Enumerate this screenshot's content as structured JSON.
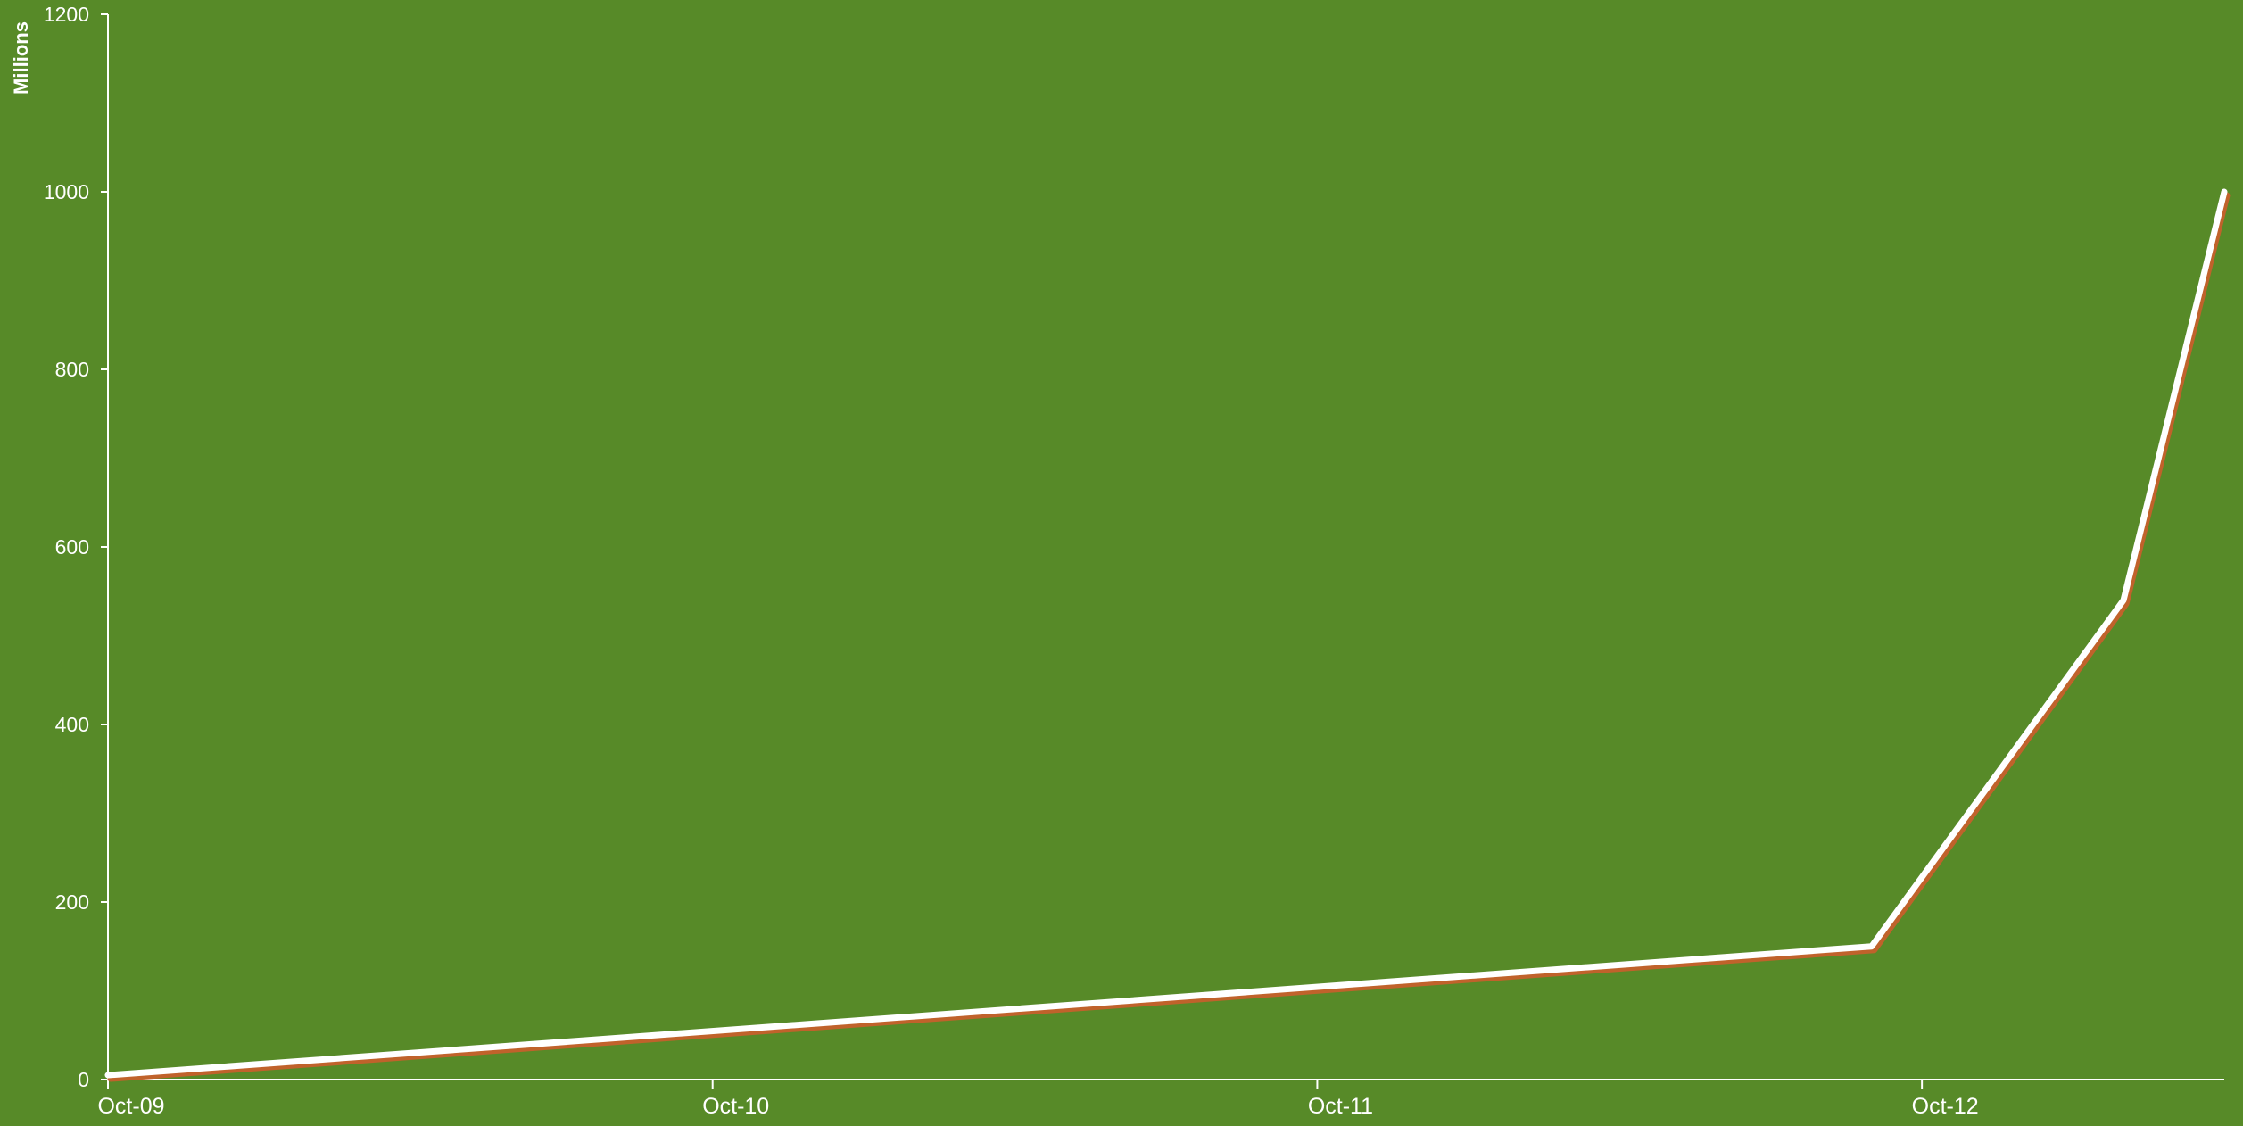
{
  "chart_data": {
    "type": "line",
    "title": "",
    "xlabel": "",
    "ylabel": "Millions",
    "x_ticks": [
      "Oct-09",
      "Oct-10",
      "Oct-11",
      "Oct-12"
    ],
    "y_ticks": [
      0,
      200,
      400,
      600,
      800,
      1000,
      1200
    ],
    "ylim": [
      0,
      1200
    ],
    "xlim": [
      "2009-10",
      "2013-04"
    ],
    "grid": false,
    "legend": "none",
    "colors": {
      "background": "#578a28",
      "line": "#ffffff",
      "line_shadow": "#c0622b",
      "axis": "#ffffff"
    },
    "series": [
      {
        "x": [
          "2009-10",
          "2012-09",
          "2013-02",
          "2013-04"
        ],
        "y": [
          5,
          150,
          540,
          1000
        ]
      }
    ]
  }
}
